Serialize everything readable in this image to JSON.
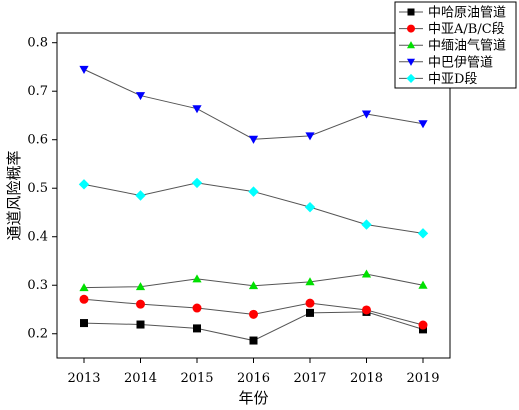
{
  "chart_data": {
    "type": "line",
    "xlabel": "年份",
    "ylabel": "通道风险概率",
    "x": [
      2013,
      2014,
      2015,
      2016,
      2017,
      2018,
      2019
    ],
    "ylim": [
      0.15,
      0.82
    ],
    "yticks": [
      0.2,
      0.3,
      0.4,
      0.5,
      0.6,
      0.7,
      0.8
    ],
    "yticks_labels": [
      "0.2",
      "0.3",
      "0.4",
      "0.5",
      "0.6",
      "0.7",
      "0.8"
    ],
    "legend_position": "top-right",
    "grid": false,
    "series": [
      {
        "name": "中哈原油管道",
        "marker": "square",
        "color": "#000000",
        "values": [
          0.222,
          0.219,
          0.211,
          0.186,
          0.243,
          0.245,
          0.209
        ]
      },
      {
        "name": "中亚A/B/C段",
        "marker": "circle",
        "color": "#ff0000",
        "values": [
          0.271,
          0.261,
          0.253,
          0.24,
          0.263,
          0.249,
          0.218
        ]
      },
      {
        "name": "中缅油气管道",
        "marker": "triangle-up",
        "color": "#00e000",
        "values": [
          0.295,
          0.297,
          0.313,
          0.299,
          0.307,
          0.323,
          0.3
        ]
      },
      {
        "name": "中巴伊管道",
        "marker": "triangle-down",
        "color": "#0000ff",
        "values": [
          0.745,
          0.691,
          0.664,
          0.601,
          0.608,
          0.653,
          0.633
        ]
      },
      {
        "name": "中亚D段",
        "marker": "diamond",
        "color": "#00ffff",
        "values": [
          0.508,
          0.485,
          0.511,
          0.493,
          0.461,
          0.425,
          0.407
        ]
      }
    ]
  }
}
